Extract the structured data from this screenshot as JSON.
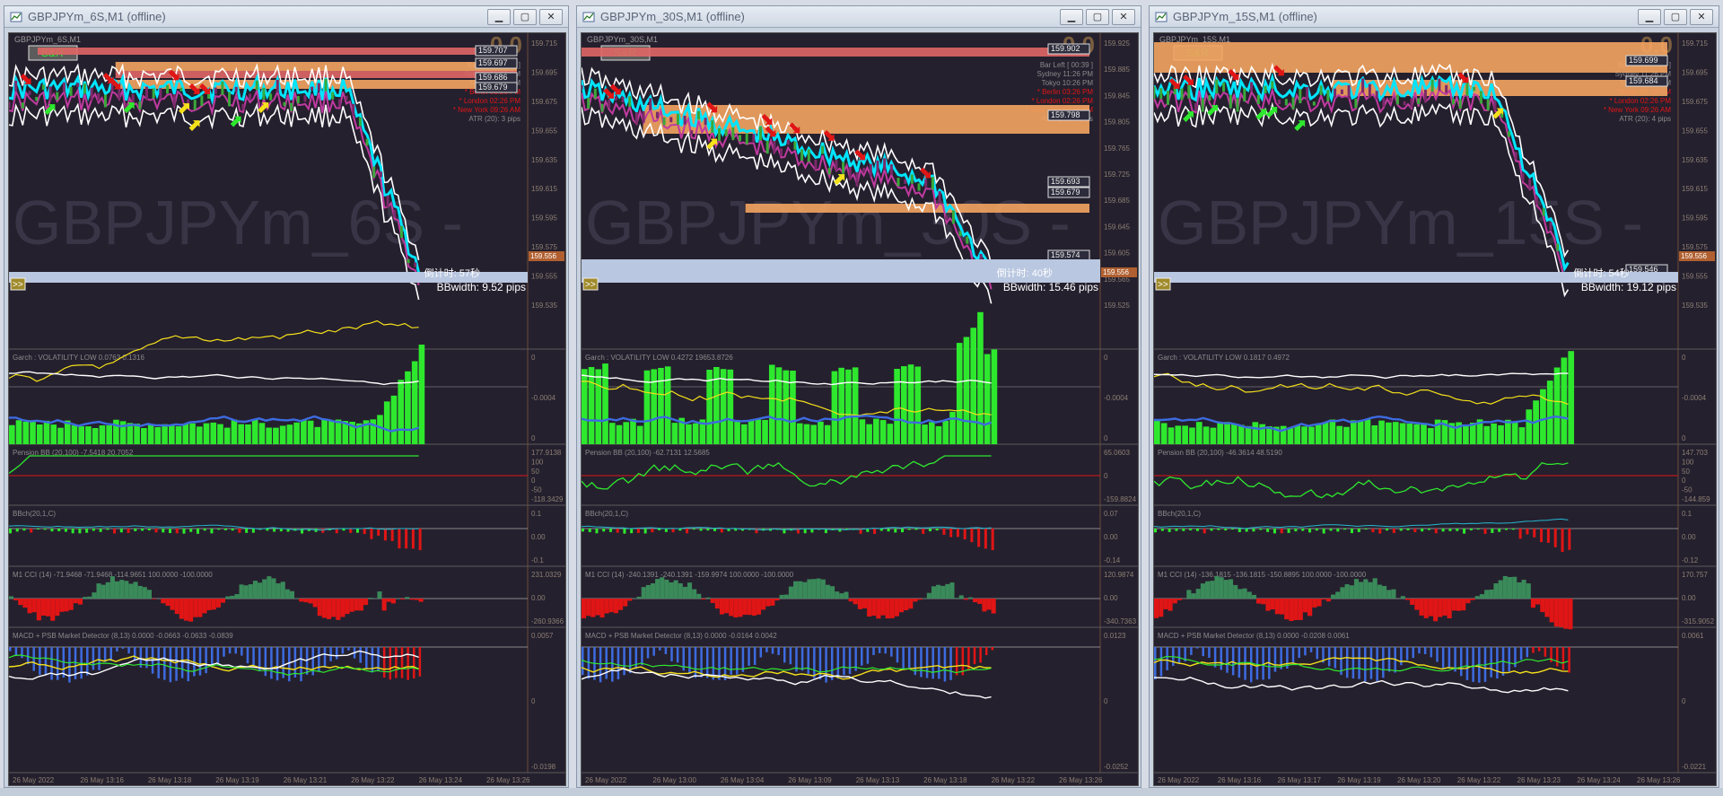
{
  "windows": [
    {
      "title": "GBPJPYm_6S,M1 (offline)",
      "symbol_label": "GBPJPYm_6S,M1",
      "watermark": "GBPJPYm_6S - ",
      "big_value": "0.0",
      "sr_label": "S&R",
      "info_lines": [
        "Bar Left   [ 00:57 ]",
        "Sydney   11:26 PM",
        "Tokyo   10:26 PM",
        "* Berlin   03:26 PM",
        "* London   02:26 PM",
        "* New York   09:26 AM",
        "ATR (20): 3 pips"
      ],
      "price_axis": [
        "159.715",
        "159.695",
        "159.675",
        "159.655",
        "159.635",
        "159.615",
        "159.595",
        "159.575",
        "159.555",
        "159.535"
      ],
      "current_price": "159.556",
      "level_tags": [
        "159.707",
        "159.697",
        "159.686",
        "159.679"
      ],
      "countdown": "倒计时: 57秒",
      "bbwidth": "BBwidth: 9.52 pips",
      "garch_label": "Garch : VOLATILITY LOW 0.0763 0.1316",
      "garch_axis": [
        "0",
        "-0.0004",
        "0"
      ],
      "pension_label": "Pension BB (20,100) -7.5418 20.7052",
      "pension_axis": [
        "177.9138",
        "100",
        "50",
        "0",
        "-50",
        "-118.3429"
      ],
      "bbch_label": "BBch(20,1,C)",
      "bbch_axis": [
        "0.1",
        "0.00",
        "-0.1"
      ],
      "cci_label": "M1  CCI  (14) -71.9468 -71.9468 -114.9651 100.0000 -100.0000",
      "cci_axis": [
        "231.0329",
        "0.00",
        "-260.9366"
      ],
      "macd_label": "MACD + PSB Market Detector (8,13) 0.0000 -0.0663 -0.0633 -0.0839",
      "macd_axis": [
        "0.0057",
        "0",
        "-0.0198"
      ],
      "time_axis": [
        "26 May 2022",
        "26 May 13:16",
        "26 May 13:18",
        "26 May 13:19",
        "26 May 13:21",
        "26 May 13:22",
        "26 May 13:24",
        "26 May 13:26"
      ]
    },
    {
      "title": "GBPJPYm_30S,M1 (offline)",
      "symbol_label": "GBPJPYm_30S,M1",
      "watermark": "GBPJPYm_30S - ",
      "big_value": "0.0",
      "sr_label": "S&R",
      "info_lines": [
        "Bar Left   [ 00:39 ]",
        "Sydney   11:26 PM",
        "Tokyo   10:26 PM",
        "* Berlin   03:26 PM",
        "* London   02:26 PM",
        "* New York   09:26 AM",
        "ATR (20): 6 pips"
      ],
      "price_axis": [
        "159.925",
        "159.885",
        "159.845",
        "159.805",
        "159.765",
        "159.725",
        "159.685",
        "159.645",
        "159.605",
        "159.565",
        "159.525"
      ],
      "current_price": "159.556",
      "level_tags": [
        "159.902",
        "159.798",
        "159.693",
        "159.679",
        "159.574"
      ],
      "countdown": "倒计时: 40秒",
      "bbwidth": "BBwidth: 15.46 pips",
      "garch_label": "Garch : VOLATILITY LOW 0.4272 19653.8726",
      "garch_axis": [
        "0",
        "-0.0004",
        "0"
      ],
      "pension_label": "Pension BB (20,100) -62.7131 12.5685",
      "pension_axis": [
        "65.0603",
        "0",
        "-159.8824"
      ],
      "bbch_label": "BBch(20,1,C)",
      "bbch_axis": [
        "0.07",
        "0.00",
        "-0.14"
      ],
      "cci_label": "M1  CCI  (14) -240.1391 -240.1391 -159.9974 100.0000 -100.0000",
      "cci_axis": [
        "120.9874",
        "0.00",
        "-340.7363"
      ],
      "macd_label": "MACD + PSB Market Detector (8,13) 0.0000 -0.0164 0.0042",
      "macd_axis": [
        "0.0123",
        "0",
        "-0.0252"
      ],
      "time_axis": [
        "26 May 2022",
        "26 May 13:00",
        "26 May 13:04",
        "26 May 13:09",
        "26 May 13:13",
        "26 May 13:18",
        "26 May 13:22",
        "26 May 13:26"
      ]
    },
    {
      "title": "GBPJPYm_15S,M1 (offline)",
      "symbol_label": "GBPJPYm_15S,M1",
      "watermark": "GBPJPYm_15S - ",
      "big_value": "0.0",
      "sr_label": "S&R",
      "info_lines": [
        "Bar Left   [ 00:54 ]",
        "Sydney   11:26 PM",
        "Tokyo   10:26 PM",
        "* Berlin   03:26 PM",
        "* London   02:26 PM",
        "* New York   09:26 AM",
        "ATR (20): 4 pips"
      ],
      "price_axis": [
        "159.715",
        "159.695",
        "159.675",
        "159.655",
        "159.635",
        "159.615",
        "159.595",
        "159.575",
        "159.555",
        "159.535"
      ],
      "current_price": "159.556",
      "level_tags": [
        "159.699",
        "159.684",
        "159.546"
      ],
      "countdown": "倒计时: 54秒",
      "bbwidth": "BBwidth: 19.12 pips",
      "garch_label": "Garch : VOLATILITY LOW 0.1817 0.4972",
      "garch_axis": [
        "0",
        "-0.0004",
        "0"
      ],
      "pension_label": "Pension BB (20,100) -46.3614 48.5190",
      "pension_axis": [
        "147.703",
        "100",
        "50",
        "0",
        "-50",
        "-144.859"
      ],
      "bbch_label": "BBch(20,1,C)",
      "bbch_axis": [
        "0.1",
        "0.00",
        "-0.12"
      ],
      "cci_label": "M1  CCI  (14) -136.1815 -136.1815 -150.8895 100.0000 -100.0000",
      "cci_axis": [
        "170.757",
        "0.00",
        "-315.9052"
      ],
      "macd_label": "MACD + PSB Market Detector (8,13) 0.0000 -0.0208 0.0061",
      "macd_axis": [
        "0.0061",
        "0",
        "-0.0221"
      ],
      "time_axis": [
        "26 May 2022",
        "26 May 13:16",
        "26 May 13:17",
        "26 May 13:19",
        "26 May 13:20",
        "26 May 13:22",
        "26 May 13:23",
        "26 May 13:24",
        "26 May 13:26"
      ]
    }
  ],
  "colors": {
    "bg": "#25202e",
    "grid": "#6b4c3a",
    "axis_text": "#8a7f72",
    "orange": "#f4a460",
    "salmon": "#e06666",
    "cyan": "#00e5ff",
    "magenta": "#c03aa0",
    "white": "#ffffff",
    "green": "#2ee82e",
    "yellow": "#f5e11a",
    "red": "#e01515",
    "blue": "#3d6be0",
    "lightblue_zone": "#b9c7e0"
  },
  "icons": {
    "minimize": "minimize-icon",
    "maximize": "maximize-icon",
    "close": "close-icon",
    "app": "chart-window-icon"
  }
}
